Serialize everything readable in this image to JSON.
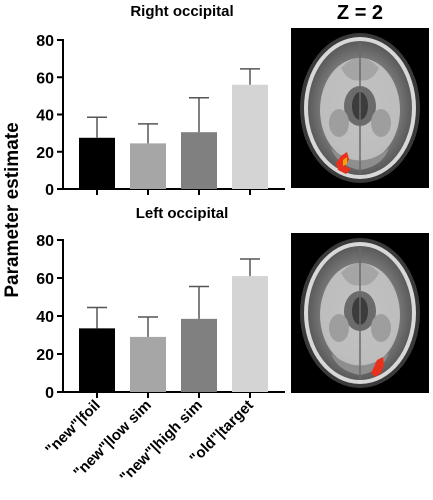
{
  "z_label": "Z = 2",
  "ylabel": "Parameter estimate",
  "colors": {
    "bar_fills": [
      "#000000",
      "#a6a6a6",
      "#808080",
      "#d4d4d4"
    ],
    "cluster": "#e8301c",
    "cluster_core": "#f5a300",
    "error_bar": "#555555"
  },
  "chart_data": [
    {
      "type": "bar",
      "title": "Right occipital",
      "categories": [
        "\"new\"|foil",
        "\"new\"|low sim",
        "\"new\"|high sim",
        "\"old\"|target"
      ],
      "values": [
        27.5,
        24.5,
        30.5,
        56
      ],
      "errors": [
        11,
        10.5,
        18.5,
        8.5
      ],
      "ylim": [
        0,
        80
      ],
      "yticks": [
        0,
        20,
        40,
        60,
        80
      ],
      "ylabel": "Parameter estimate",
      "grid": false
    },
    {
      "type": "bar",
      "title": "Left occipital",
      "categories": [
        "\"new\"|foil",
        "\"new\"|low sim",
        "\"new\"|high sim",
        "\"old\"|target"
      ],
      "values": [
        33.5,
        29,
        38.5,
        61
      ],
      "errors": [
        11,
        10.5,
        17,
        9
      ],
      "ylim": [
        0,
        80
      ],
      "yticks": [
        0,
        20,
        40,
        60,
        80
      ],
      "ylabel": "Parameter estimate",
      "grid": false
    }
  ]
}
